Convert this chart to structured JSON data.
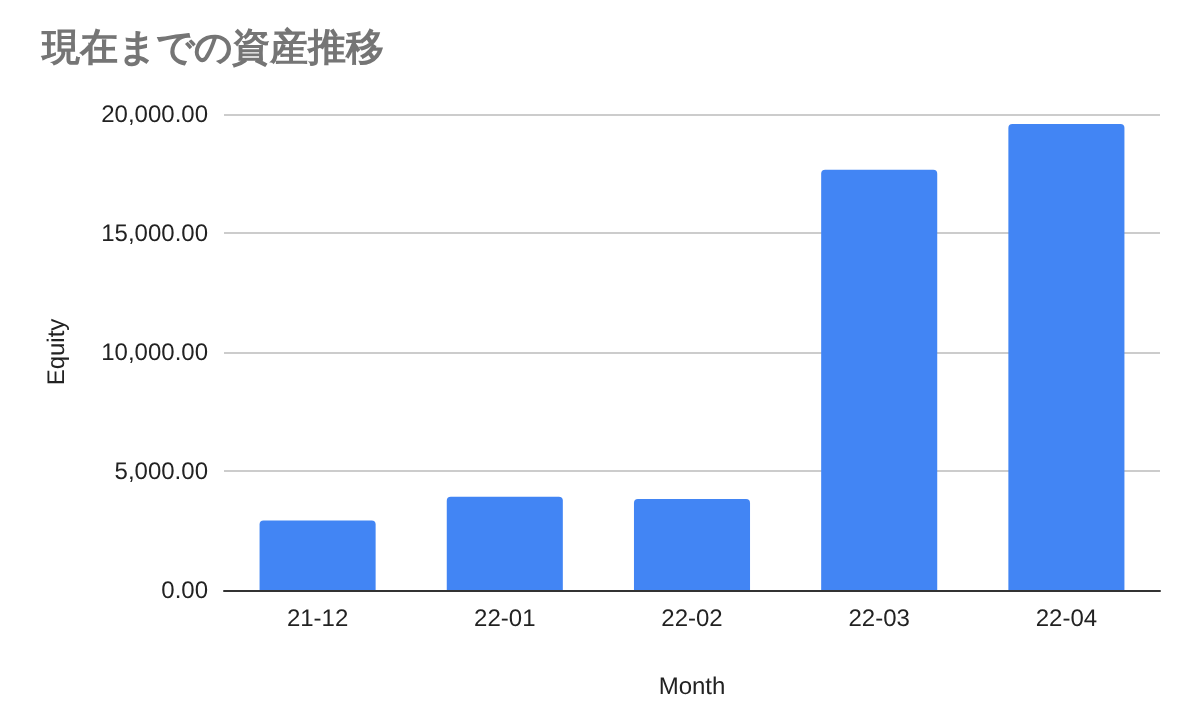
{
  "chart_data": {
    "type": "bar",
    "title": "現在までの資産推移",
    "xlabel": "Month",
    "ylabel": "Equity",
    "categories": [
      "21-12",
      "22-01",
      "22-02",
      "22-03",
      "22-04"
    ],
    "values": [
      2920,
      3920,
      3820,
      17660,
      19580
    ],
    "color": "#4285f4",
    "ylim": [
      0,
      20000
    ],
    "yticks": [
      {
        "value": 0,
        "label": "0.00"
      },
      {
        "value": 5000,
        "label": "5,000.00"
      },
      {
        "value": 10000,
        "label": "10,000.00"
      },
      {
        "value": 15000,
        "label": "15,000.00"
      },
      {
        "value": 20000,
        "label": "20,000.00"
      }
    ],
    "grid": "y"
  }
}
